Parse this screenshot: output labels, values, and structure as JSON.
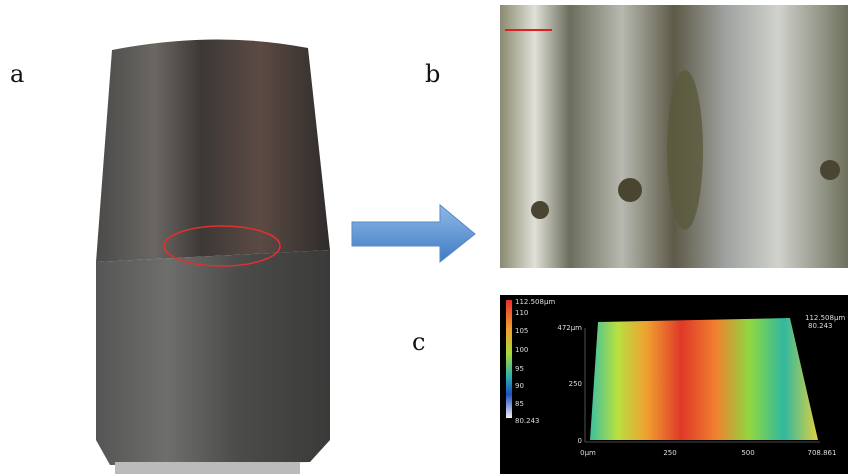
{
  "panels": {
    "a": "a",
    "b": "b",
    "c": "c"
  },
  "panel_c": {
    "colorbar_labels": [
      "112.508µm",
      "110",
      "105",
      "100",
      "95",
      "90",
      "85",
      "80.243"
    ],
    "y_axis_labels": [
      "472µm",
      "250",
      "0"
    ],
    "x_axis_labels": [
      "0µm",
      "250",
      "500",
      "708.861"
    ],
    "z_labels": [
      "112.508µm",
      "80.243"
    ]
  }
}
